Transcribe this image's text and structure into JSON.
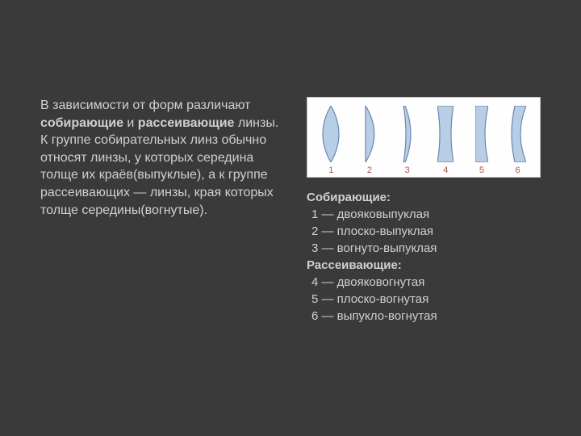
{
  "paragraph": {
    "prefix": "В зависимости от форм различают ",
    "bold1": "собирающие",
    "mid1": " и ",
    "bold2": "рассеивающие",
    "rest": " линзы. К группе собирательных линз обычно относят линзы, у которых середина толще их краёв(выпуклые), а к группе рассеивающих — линзы, края которых толще середины(вогнутые)."
  },
  "figure": {
    "background": "#ffffff",
    "lens_fill": "#b8cee6",
    "lens_stroke": "#6a88b0",
    "number_color": "#b05050",
    "lens_height": 70,
    "lenses": [
      {
        "num": "1",
        "type": "biconvex"
      },
      {
        "num": "2",
        "type": "plano-convex"
      },
      {
        "num": "3",
        "type": "concavo-convex"
      },
      {
        "num": "4",
        "type": "biconcave"
      },
      {
        "num": "5",
        "type": "plano-concave"
      },
      {
        "num": "6",
        "type": "convexo-concave"
      }
    ]
  },
  "legend": {
    "group1_title": "Собирающие:",
    "group1_items": [
      "1 — двояковыпуклая",
      "2 — плоско-выпуклая",
      "3 — вогнуто-выпуклая"
    ],
    "group2_title": "Рассеивающие:",
    "group2_items": [
      "4 — двояковогнутая",
      "5 — плоско-вогнутая",
      "6 — выпукло-вогнутая"
    ]
  },
  "colors": {
    "page_bg": "#3a3a3a",
    "text": "#d0d0d0"
  }
}
